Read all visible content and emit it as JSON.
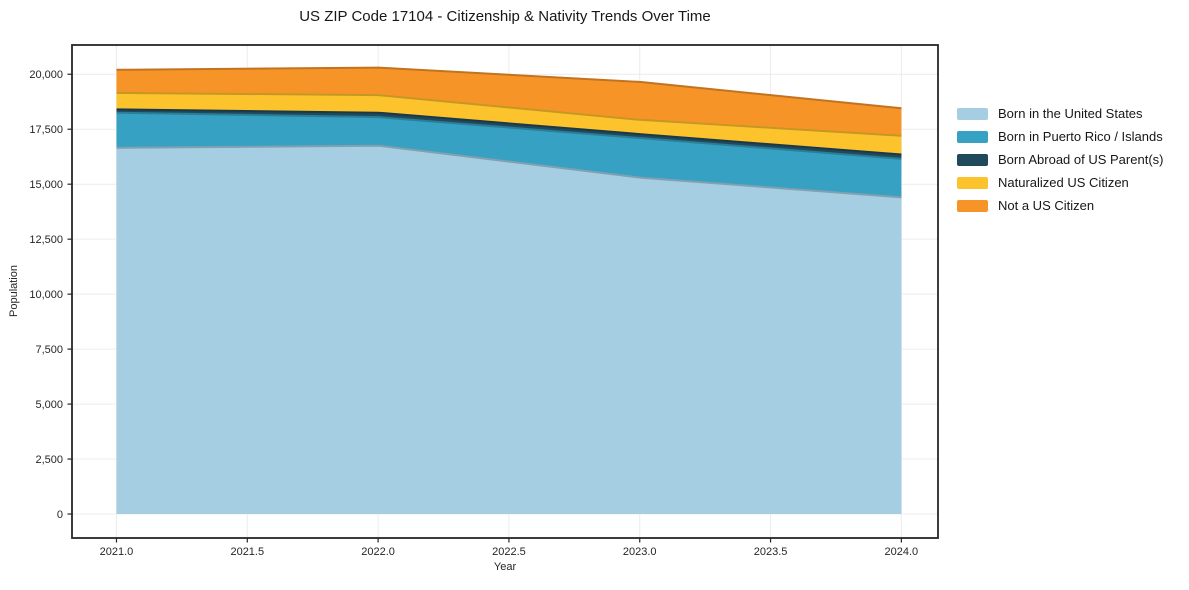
{
  "title": "US ZIP Code 17104 - Citizenship & Nativity Trends Over Time",
  "chart_data": {
    "type": "area",
    "stacked": true,
    "title": "US ZIP Code 17104 - Citizenship & Nativity Trends Over Time",
    "xlabel": "Year",
    "ylabel": "Population",
    "x": [
      2021,
      2022,
      2023,
      2024
    ],
    "series": [
      {
        "name": "Born in the United States",
        "color": "#a6cee3",
        "values": [
          16650,
          16750,
          15300,
          14400
        ]
      },
      {
        "name": "Born in Puerto Rico / Islands",
        "color": "#36a1c3",
        "values": [
          1600,
          1300,
          1800,
          1750
        ]
      },
      {
        "name": "Born Abroad of US Parent(s)",
        "color": "#21495c",
        "values": [
          150,
          200,
          180,
          200
        ]
      },
      {
        "name": "Naturalized US Citizen",
        "color": "#fdc32d",
        "values": [
          750,
          800,
          650,
          850
        ]
      },
      {
        "name": "Not a US Citizen",
        "color": "#f79428",
        "values": [
          1050,
          1250,
          1720,
          1250
        ]
      }
    ],
    "stacked_totals": [
      20200,
      20300,
      19650,
      18450
    ],
    "x_ticks": {
      "values": [
        2021,
        2021.5,
        2022,
        2022.5,
        2023,
        2023.5,
        2024
      ],
      "labels": [
        "2021.0",
        "2021.5",
        "2022.0",
        "2022.5",
        "2023.0",
        "2023.5",
        "2024.0"
      ]
    },
    "y_ticks": {
      "values": [
        0,
        2500,
        5000,
        7500,
        10000,
        12500,
        15000,
        17500,
        20000
      ],
      "labels": [
        "0",
        "2,500",
        "5,000",
        "7,500",
        "10,000",
        "12,500",
        "15,000",
        "17,500",
        "20,000"
      ]
    },
    "xlim": [
      2020.83,
      2024.14
    ],
    "ylim": [
      -1090,
      21330
    ],
    "grid": true,
    "grid_color": "#ececec",
    "axis_color": "#262626",
    "legend_position": "right-top-outside"
  }
}
